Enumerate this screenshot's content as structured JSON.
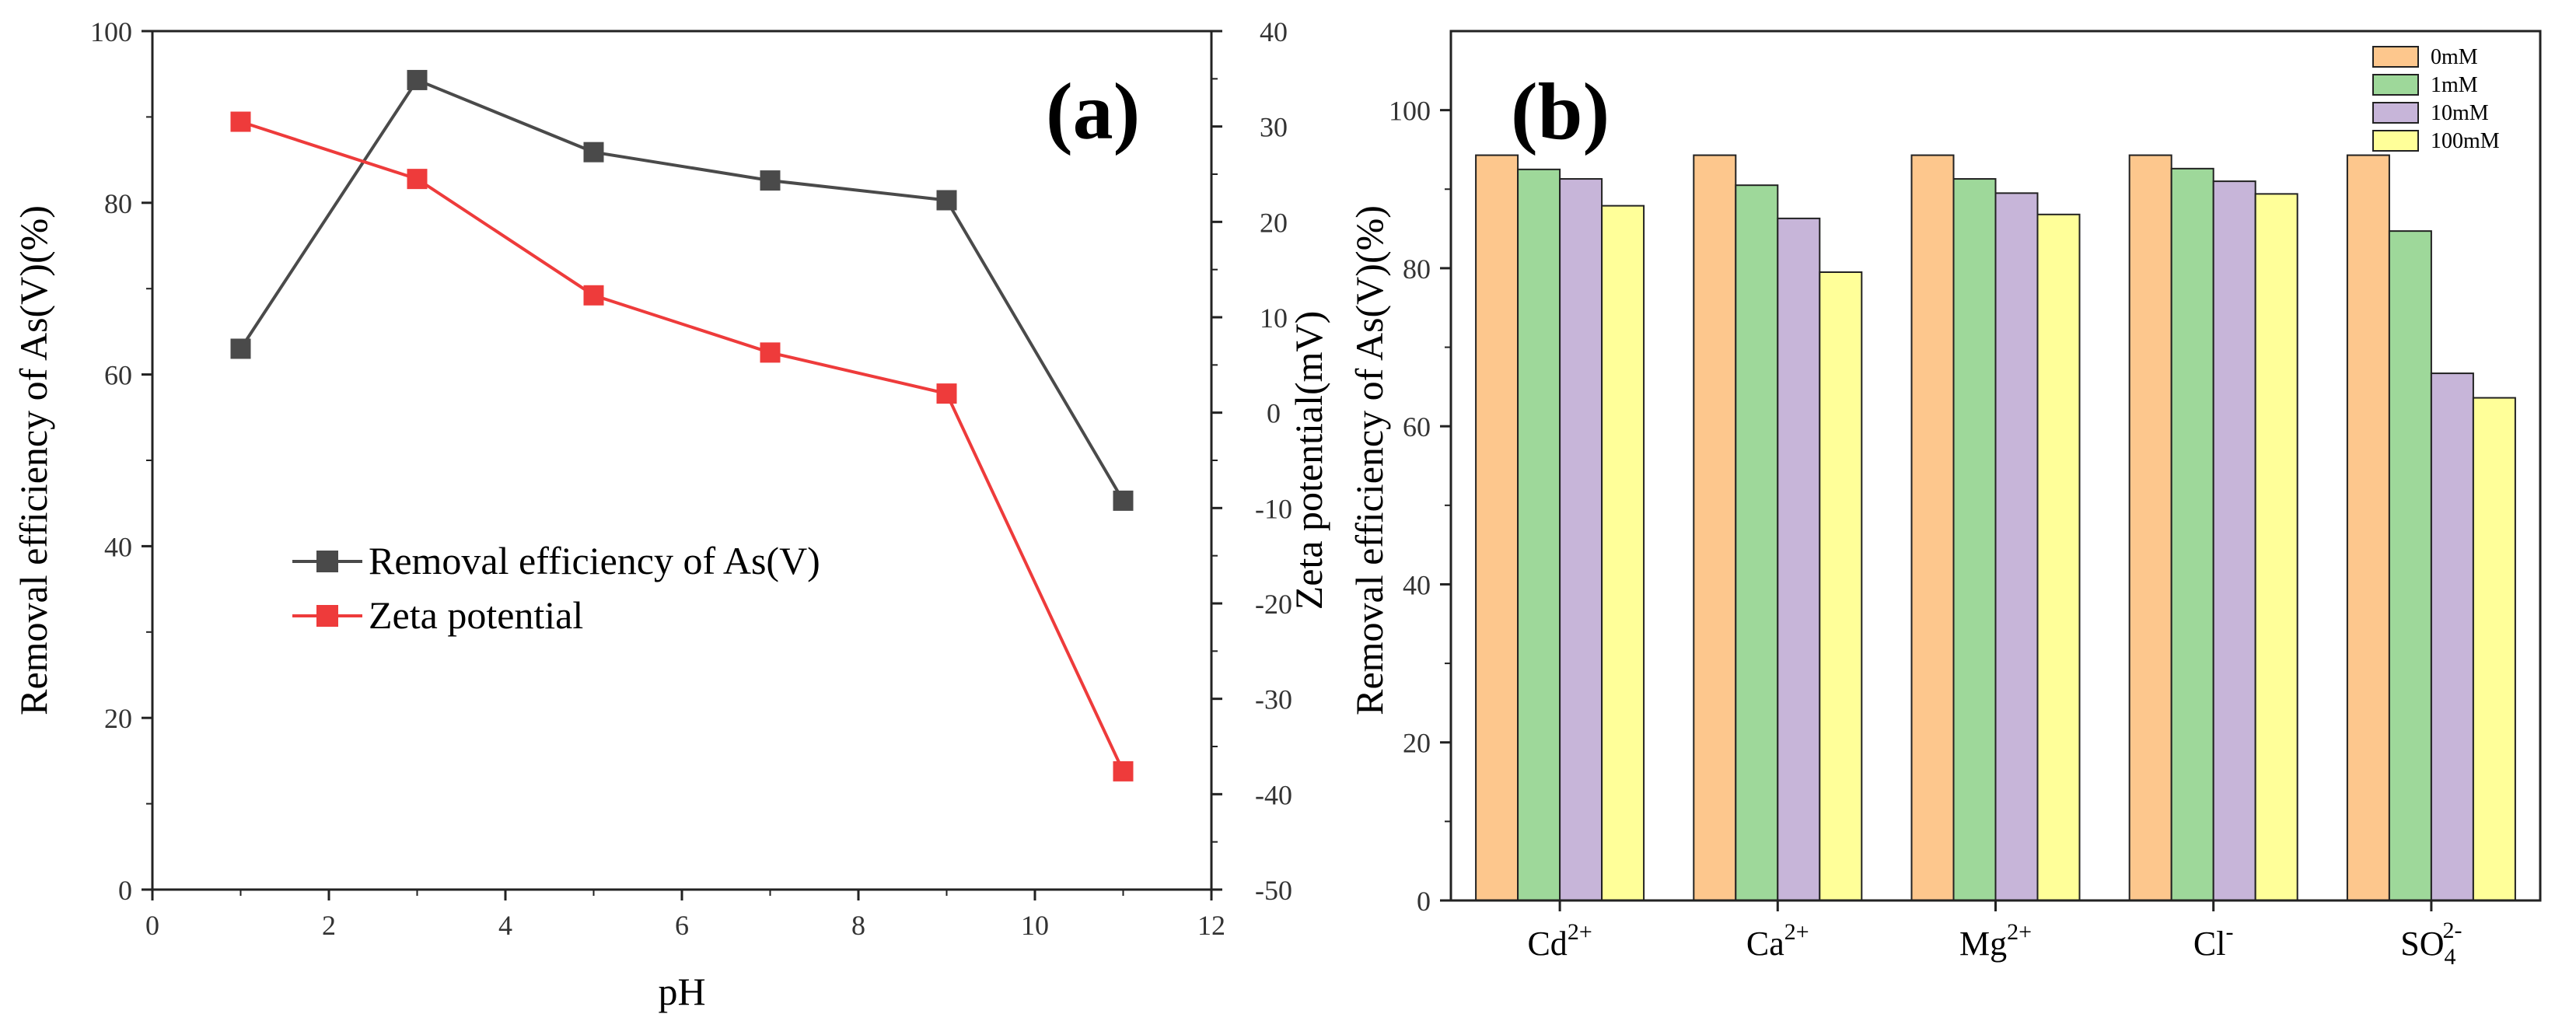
{
  "chart_data": [
    {
      "type": "line",
      "panel_label": "(a)",
      "xlabel": "pH",
      "ylabel": "Removal efficiency of As(V)(%)",
      "y2label": "Zeta potential(mV)",
      "xlim": [
        0,
        12
      ],
      "ylim": [
        0,
        100
      ],
      "y2lim": [
        -50,
        40
      ],
      "xticks": [
        0,
        2,
        4,
        6,
        8,
        10,
        12
      ],
      "yticks": [
        0,
        20,
        40,
        60,
        80,
        100
      ],
      "y2ticks": [
        -50,
        -40,
        -30,
        -20,
        -10,
        0,
        10,
        20,
        30,
        40
      ],
      "legend_position": "center-left",
      "series": [
        {
          "name": "Removal efficiency of As(V)",
          "axis": "left",
          "color": "#4a4a4a",
          "marker": "square",
          "x": [
            1,
            3,
            5,
            7,
            9,
            11
          ],
          "y": [
            63.0,
            94.3,
            85.9,
            82.6,
            80.3,
            45.3
          ]
        },
        {
          "name": "Zeta potential",
          "axis": "right",
          "color": "#ee3b3b",
          "marker": "square",
          "x": [
            1,
            3,
            5,
            7,
            9,
            11
          ],
          "y": [
            30.5,
            24.5,
            12.3,
            6.3,
            2.0,
            -37.6
          ]
        }
      ]
    },
    {
      "type": "bar",
      "panel_label": "(b)",
      "xlabel": "",
      "ylabel": "Removal efficiency of As(V)(%)",
      "ylim": [
        0,
        110
      ],
      "yticks": [
        0,
        20,
        40,
        60,
        80,
        100
      ],
      "legend_position": "top-right",
      "categories": [
        {
          "base": "Cd",
          "sup": "2+",
          "sub": ""
        },
        {
          "base": "Ca",
          "sup": "2+",
          "sub": ""
        },
        {
          "base": "Mg",
          "sup": "2+",
          "sub": ""
        },
        {
          "base": "Cl",
          "sup": "-",
          "sub": ""
        },
        {
          "base": "SO",
          "sup": "2-",
          "sub": "4"
        }
      ],
      "series": [
        {
          "name": "0mM",
          "color": "#fdc78d",
          "values": [
            94.3,
            94.3,
            94.3,
            94.3,
            94.3
          ]
        },
        {
          "name": "1mM",
          "color": "#9ed89a",
          "values": [
            92.5,
            90.5,
            91.3,
            92.6,
            84.7
          ]
        },
        {
          "name": "10mM",
          "color": "#c7b5d9",
          "values": [
            91.3,
            86.3,
            89.5,
            91.0,
            66.7
          ]
        },
        {
          "name": "100mM",
          "color": "#ffff99",
          "values": [
            87.9,
            79.5,
            86.8,
            89.4,
            63.6
          ]
        }
      ]
    }
  ]
}
